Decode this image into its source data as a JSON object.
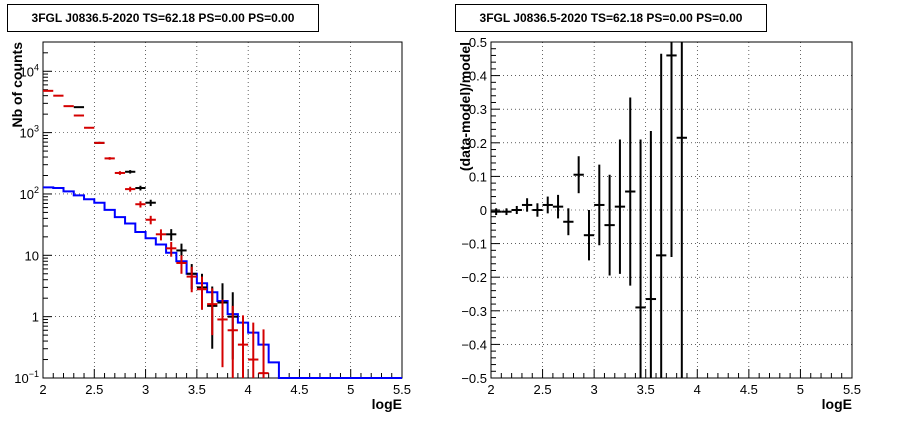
{
  "panels": [
    {
      "title": "3FGL J0836.5-2020 TS=62.18 PS=0.00 PS=0.00"
    },
    {
      "title": "3FGL J0836.5-2020 TS=62.18 PS=0.00 PS=0.00"
    }
  ],
  "colors": {
    "data": "#000000",
    "model": "#d40000",
    "background_model": "#0000ff"
  },
  "chart_data": [
    {
      "type": "line",
      "title": "3FGL J0836.5-2020 TS=62.18 PS=0.00 PS=0.00",
      "xlabel": "logE",
      "ylabel": "Nb of counts",
      "xlim": [
        2,
        5.5
      ],
      "ylim": [
        0.1,
        30000
      ],
      "yscale": "log",
      "grid": true,
      "x_ticks": [
        "2",
        "2.5",
        "3",
        "3.5",
        "4",
        "4.5",
        "5",
        "5.5"
      ],
      "y_ticks": [
        "10^-1",
        "1",
        "10",
        "10^2",
        "10^3",
        "10^4"
      ],
      "bin_edges": [
        2.0,
        2.1,
        2.2,
        2.3,
        2.4,
        2.5,
        2.6,
        2.7,
        2.8,
        2.9,
        3.0,
        3.1,
        3.2,
        3.3,
        3.4,
        3.5,
        3.6,
        3.7,
        3.8,
        3.9,
        4.0,
        4.1,
        4.2,
        4.3,
        4.4,
        4.5,
        4.6,
        4.7,
        4.8,
        4.9,
        5.0,
        5.1,
        5.2,
        5.3,
        5.4,
        5.5
      ],
      "series": [
        {
          "style": "histogram-step",
          "color": "#0000ff",
          "values": [
            128,
            125,
            110,
            95,
            82,
            72,
            55,
            42,
            33,
            24,
            19,
            15,
            11,
            8,
            5,
            3.5,
            2.5,
            1.8,
            1.1,
            0.8,
            0.55,
            0.35,
            0.18,
            0.1,
            0.1,
            0.1,
            0.1,
            0.1,
            0.1,
            0.1,
            0.1,
            0.1,
            0.1,
            0.1,
            0.1
          ]
        },
        {
          "style": "markers-errorbars",
          "color": "#d40000",
          "x": [
            2.05,
            2.15,
            2.25,
            2.35,
            2.45,
            2.55,
            2.65,
            2.75,
            2.85,
            2.95,
            3.05,
            3.15,
            3.25,
            3.35,
            3.45,
            3.55,
            3.65,
            3.75,
            3.85,
            3.95,
            4.05,
            4.15
          ],
          "y": [
            4800,
            4000,
            2700,
            1900,
            1200,
            680,
            380,
            220,
            120,
            68,
            38,
            22,
            13,
            7.5,
            4.5,
            2.8,
            1.6,
            0.9,
            0.6,
            0.35,
            0.2,
            0.12
          ],
          "yerr_low": [
            70,
            63,
            52,
            44,
            35,
            26,
            19,
            15,
            11,
            8,
            6,
            4.5,
            3.5,
            2.5,
            2.0,
            1.5,
            1.1,
            0.75,
            0.55,
            0.35,
            0.12,
            0.06
          ],
          "yerr_high": [
            70,
            63,
            52,
            44,
            35,
            26,
            19,
            15,
            11,
            8,
            6,
            4.5,
            3.5,
            2.5,
            2.0,
            1.7,
            1.3,
            1.0,
            0.9,
            0.7,
            0.6,
            0.5
          ]
        },
        {
          "style": "markers-errorbars",
          "color": "#000000",
          "x": [
            2.35,
            2.55,
            2.85,
            2.95,
            3.05,
            3.25,
            3.35,
            3.45,
            3.55,
            3.65,
            3.75,
            3.85
          ],
          "y": [
            2600,
            680,
            230,
            125,
            72,
            22,
            12,
            5,
            3,
            1.5,
            1.7,
            1.0
          ],
          "yerr_low": [
            51,
            26,
            15,
            11,
            8.5,
            4.7,
            3.5,
            2.2,
            1.7,
            1.2,
            1.3,
            0.8
          ],
          "yerr_high": [
            51,
            26,
            15,
            11,
            8.5,
            4.7,
            3.5,
            2.2,
            2.0,
            1.6,
            1.8,
            1.5
          ]
        }
      ]
    },
    {
      "type": "scatter",
      "title": "3FGL J0836.5-2020 TS=62.18 PS=0.00 PS=0.00",
      "xlabel": "logE",
      "ylabel": "(data-model)/model",
      "xlim": [
        2,
        5.5
      ],
      "ylim": [
        -0.5,
        0.5
      ],
      "grid": true,
      "x_ticks": [
        "2",
        "2.5",
        "3",
        "3.5",
        "4",
        "4.5",
        "5",
        "5.5"
      ],
      "y_ticks": [
        "−0.5",
        "−0.4",
        "−0.3",
        "−0.2",
        "−0.1",
        "0",
        "0.1",
        "0.2",
        "0.3",
        "0.4",
        "0.5"
      ],
      "series": [
        {
          "style": "markers-errorbars",
          "color": "#000000",
          "xhalfwidth": 0.05,
          "x": [
            2.05,
            2.15,
            2.25,
            2.35,
            2.45,
            2.55,
            2.65,
            2.75,
            2.85,
            2.95,
            3.05,
            3.15,
            3.25,
            3.35,
            3.45,
            3.55,
            3.65,
            3.75,
            3.85
          ],
          "y": [
            -0.005,
            -0.005,
            0.0,
            0.015,
            0.0,
            0.015,
            0.01,
            -0.035,
            0.105,
            -0.075,
            0.015,
            -0.045,
            0.01,
            0.055,
            -0.29,
            -0.265,
            -0.135,
            0.46,
            0.215
          ],
          "yerr": [
            0.01,
            0.01,
            0.012,
            0.02,
            0.02,
            0.025,
            0.035,
            0.04,
            0.055,
            0.075,
            0.12,
            0.15,
            0.2,
            0.28,
            0.5,
            0.5,
            0.6,
            0.6,
            0.8
          ]
        }
      ]
    }
  ]
}
